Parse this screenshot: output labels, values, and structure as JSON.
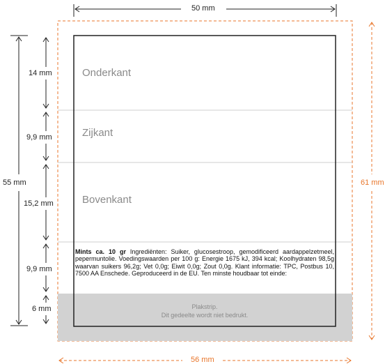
{
  "dimensions": {
    "top_width": "50 mm",
    "bottom_width": "56 mm",
    "left_height": "55 mm",
    "right_height": "61 mm"
  },
  "segments": [
    {
      "label": "14 mm"
    },
    {
      "label": "9,9 mm"
    },
    {
      "label": "15,2 mm"
    },
    {
      "label": "9,9 mm"
    },
    {
      "label": "6 mm"
    }
  ],
  "sections": {
    "onderkant": "Onderkant",
    "zijkant": "Zijkant",
    "bovenkant": "Bovenkant"
  },
  "ingredients": {
    "title": "Mints ca. 10 gr",
    "text": " Ingrediënten: Suiker, glucosestroop, gemodificeerd aardappelzetmeel, pepermuntolie. Voedingswaarden per 100 g: Energie 1675 kJ, 394 kcal; Koolhydraten 98,5g waarvan suikers 96,2g; Vet 0,0g; Eiwit 0,0g; Zout 0,0g. Klant informatie: TPC, Postbus 10, 7500 AA Enschede.  Geproduceerd in de EU. Ten minste houdbaar tot einde:"
  },
  "plakstrip": {
    "line1": "Plakstrip.",
    "line2": "Dit gedeelte wordt niet bedrukt."
  },
  "colors": {
    "orange": "#e8762b",
    "gray_strip": "#d2d2d2",
    "divider": "#cfcfcf",
    "outline": "#222222"
  }
}
